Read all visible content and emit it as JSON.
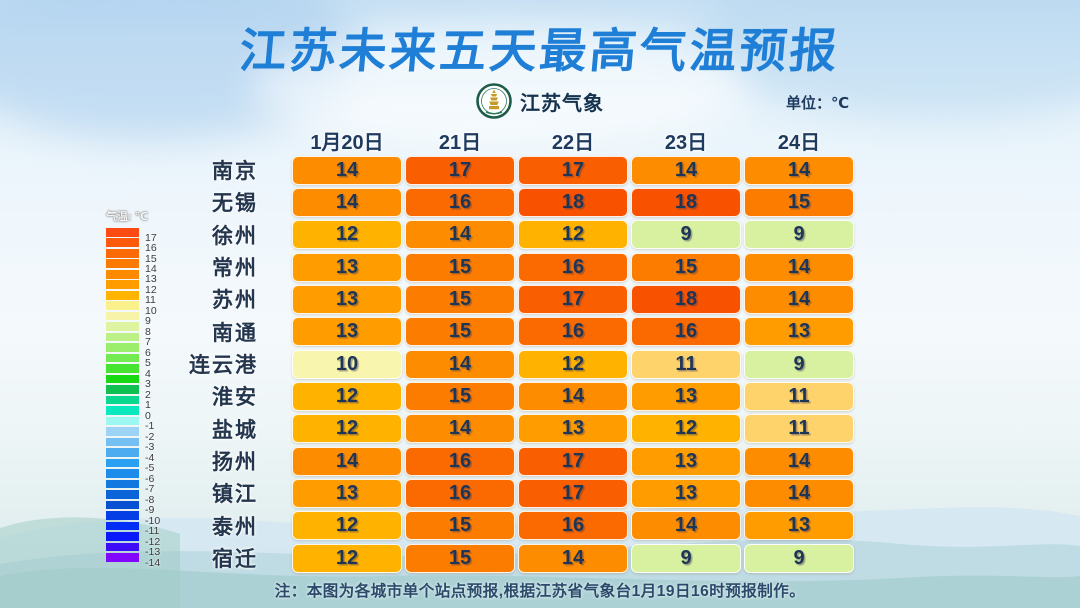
{
  "title": "江苏未来五天最高气温预报",
  "brand": {
    "name": "江苏气象"
  },
  "unit_label": "单位：℃",
  "note": "注：本图为各城市单个站点预报,根据江苏省气象台1月19日16时预报制作。",
  "colors": {
    "title_blue": "#1f7fd6",
    "text_navy": "#1d3557",
    "label_dark": "#24364e",
    "header_navy": "#1e3a5f",
    "note_navy": "#2a4a6b",
    "logo_ring_green": "#1d5c48",
    "logo_pagoda_gold": "#c49b26"
  },
  "palette": {
    "18": "#f85200",
    "17": "#f95e00",
    "16": "#fa6a00",
    "15": "#fc7c00",
    "14": "#fe8c00",
    "13": "#ff9c00",
    "12": "#ffb300",
    "11": "#fed36c",
    "10": "#f8f6ae",
    "9": "#d7f1a1"
  },
  "legend": {
    "title": "气温: ℃",
    "entries": [
      {
        "label": "17",
        "color": "#fb4a12"
      },
      {
        "label": "16",
        "color": "#fb5a0b"
      },
      {
        "label": "15",
        "color": "#fc6a05"
      },
      {
        "label": "14",
        "color": "#fd7a01"
      },
      {
        "label": "13",
        "color": "#fe8a00"
      },
      {
        "label": "12",
        "color": "#ff9c00"
      },
      {
        "label": "11",
        "color": "#ffb400"
      },
      {
        "label": "10",
        "color": "#faf08c"
      },
      {
        "label": "9",
        "color": "#f7f3a9"
      },
      {
        "label": "8",
        "color": "#dff4a0"
      },
      {
        "label": "7",
        "color": "#bdf187"
      },
      {
        "label": "6",
        "color": "#9bee6c"
      },
      {
        "label": "5",
        "color": "#73ea50"
      },
      {
        "label": "4",
        "color": "#46e431"
      },
      {
        "label": "3",
        "color": "#18d813"
      },
      {
        "label": "2",
        "color": "#0fbf4f"
      },
      {
        "label": "1",
        "color": "#0bd88f"
      },
      {
        "label": "0",
        "color": "#0ae8be"
      },
      {
        "label": "-1",
        "color": "#9ef8f2"
      },
      {
        "label": "-2",
        "color": "#9dd4f6"
      },
      {
        "label": "-3",
        "color": "#74c0f3"
      },
      {
        "label": "-4",
        "color": "#4dacf0"
      },
      {
        "label": "-5",
        "color": "#2aa0f3"
      },
      {
        "label": "-6",
        "color": "#1d8cea"
      },
      {
        "label": "-7",
        "color": "#1378e0"
      },
      {
        "label": "-8",
        "color": "#0c64d9"
      },
      {
        "label": "-9",
        "color": "#0650d1"
      },
      {
        "label": "-10",
        "color": "#043ee4"
      },
      {
        "label": "-11",
        "color": "#032ef5"
      },
      {
        "label": "-12",
        "color": "#0919fb"
      },
      {
        "label": "-13",
        "color": "#3e0cf9"
      },
      {
        "label": "-14",
        "color": "#8107fe"
      }
    ]
  },
  "table": {
    "columns": [
      "1月20日",
      "21日",
      "22日",
      "23日",
      "24日"
    ],
    "rows": [
      {
        "city": "南京",
        "temps": [
          14,
          17,
          17,
          14,
          14
        ]
      },
      {
        "city": "无锡",
        "temps": [
          14,
          16,
          18,
          18,
          15
        ]
      },
      {
        "city": "徐州",
        "temps": [
          12,
          14,
          12,
          9,
          9
        ]
      },
      {
        "city": "常州",
        "temps": [
          13,
          15,
          16,
          15,
          14
        ]
      },
      {
        "city": "苏州",
        "temps": [
          13,
          15,
          17,
          18,
          14
        ]
      },
      {
        "city": "南通",
        "temps": [
          13,
          15,
          16,
          16,
          13
        ]
      },
      {
        "city": "连云港",
        "temps": [
          10,
          14,
          12,
          11,
          9
        ]
      },
      {
        "city": "淮安",
        "temps": [
          12,
          15,
          14,
          13,
          11
        ]
      },
      {
        "city": "盐城",
        "temps": [
          12,
          14,
          13,
          12,
          11
        ]
      },
      {
        "city": "扬州",
        "temps": [
          14,
          16,
          17,
          13,
          14
        ]
      },
      {
        "city": "镇江",
        "temps": [
          13,
          16,
          17,
          13,
          14
        ]
      },
      {
        "city": "泰州",
        "temps": [
          12,
          15,
          16,
          14,
          13
        ]
      },
      {
        "city": "宿迁",
        "temps": [
          12,
          15,
          14,
          9,
          9
        ]
      }
    ]
  },
  "chart_data": {
    "type": "heatmap",
    "title": "江苏未来五天最高气温预报",
    "unit": "℃",
    "x": [
      "1月20日",
      "21日",
      "22日",
      "23日",
      "24日"
    ],
    "y": [
      "南京",
      "无锡",
      "徐州",
      "常州",
      "苏州",
      "南通",
      "连云港",
      "淮安",
      "盐城",
      "扬州",
      "镇江",
      "泰州",
      "宿迁"
    ],
    "values": [
      [
        14,
        17,
        17,
        14,
        14
      ],
      [
        14,
        16,
        18,
        18,
        15
      ],
      [
        12,
        14,
        12,
        9,
        9
      ],
      [
        13,
        15,
        16,
        15,
        14
      ],
      [
        13,
        15,
        17,
        18,
        14
      ],
      [
        13,
        15,
        16,
        16,
        13
      ],
      [
        10,
        14,
        12,
        11,
        9
      ],
      [
        12,
        15,
        14,
        13,
        11
      ],
      [
        12,
        14,
        13,
        12,
        11
      ],
      [
        14,
        16,
        17,
        13,
        14
      ],
      [
        13,
        16,
        17,
        13,
        14
      ],
      [
        12,
        15,
        16,
        14,
        13
      ],
      [
        12,
        15,
        14,
        9,
        9
      ]
    ],
    "colorbar": {
      "title": "气温: ℃",
      "tick_labels": [
        17,
        16,
        15,
        14,
        13,
        12,
        11,
        10,
        9,
        8,
        7,
        6,
        5,
        4,
        3,
        2,
        1,
        0,
        -1,
        -2,
        -3,
        -4,
        -5,
        -6,
        -7,
        -8,
        -9,
        -10,
        -11,
        -12,
        -13,
        -14
      ],
      "position": "left"
    },
    "legend_position": "left",
    "source_note": "注：本图为各城市单个站点预报,根据江苏省气象台1月19日16时预报制作。"
  }
}
